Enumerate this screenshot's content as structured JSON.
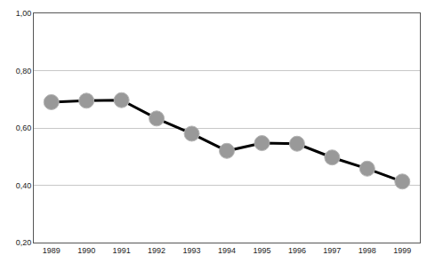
{
  "chart_data": {
    "type": "line",
    "categories": [
      "1989",
      "1990",
      "1991",
      "1992",
      "1993",
      "1994",
      "1995",
      "1996",
      "1997",
      "1998",
      "1999"
    ],
    "values": [
      0.69,
      0.695,
      0.697,
      0.633,
      0.58,
      0.52,
      0.547,
      0.545,
      0.497,
      0.458,
      0.413
    ],
    "color": "#999999",
    "marker": "circle",
    "ylim": [
      0.2,
      1.0
    ],
    "yticks": [
      {
        "value": 0.2,
        "label": "0,20"
      },
      {
        "value": 0.4,
        "label": "0,40"
      },
      {
        "value": 0.6,
        "label": "0,60"
      },
      {
        "value": 0.8,
        "label": "0,80"
      },
      {
        "value": 1.0,
        "label": "1,00"
      }
    ],
    "grid": true
  }
}
